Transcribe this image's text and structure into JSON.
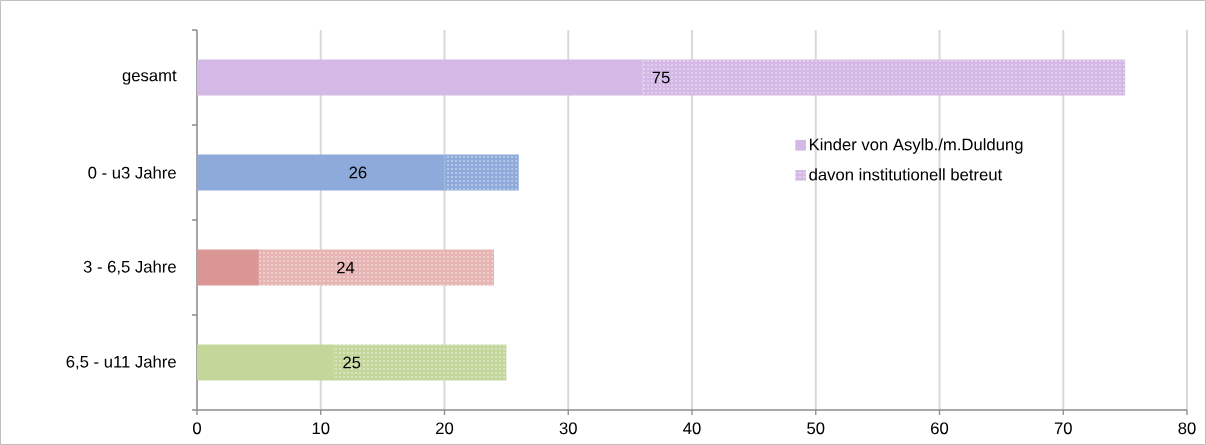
{
  "chart_data": {
    "type": "bar",
    "orientation": "horizontal",
    "stacked": true,
    "categories": [
      "gesamt",
      "0 - u3 Jahre",
      "3 - 6,5 Jahre",
      "6,5 - u11 Jahre"
    ],
    "series": [
      {
        "name": "Kinder von Asylb./m.Duldung",
        "colors": [
          "#d4b8e6",
          "#8eaadb",
          "#da9694",
          "#c4d79b"
        ],
        "values": [
          36,
          20,
          5,
          11
        ]
      },
      {
        "name": "davon institutionell betreut",
        "colors": [
          "#d4b8e6",
          "#8eaadb",
          "#e6b4b3",
          "#c4d79b"
        ],
        "values": [
          39,
          6,
          19,
          14
        ]
      }
    ],
    "totals": [
      "75",
      "26",
      "24",
      "25"
    ],
    "xlim": [
      0,
      80
    ],
    "xticks": [
      0,
      10,
      20,
      30,
      40,
      50,
      60,
      70,
      80
    ],
    "grid": "x",
    "legend": "right"
  }
}
